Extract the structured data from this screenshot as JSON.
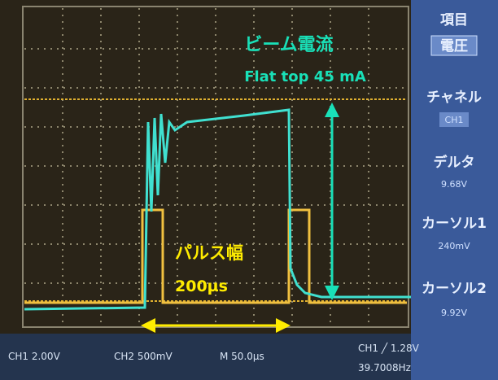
{
  "menu": {
    "title": "項目",
    "item": "電圧",
    "channel_label": "チャネル",
    "channel": "CH1",
    "delta_label": "デルタ",
    "delta": "9.68V",
    "cursor1_label": "カーソル1",
    "cursor1": "240mV",
    "cursor2_label": "カーソル2",
    "cursor2": "9.92V"
  },
  "status": {
    "ch1": "CH1 2.00V",
    "ch2": "CH2 500mV",
    "time": "M 50.0µs",
    "trigger": "CH1 ╱ 1.28V",
    "freq": "39.7008Hz"
  },
  "annotations": {
    "beam_title": "ビーム電流",
    "beam_value": "Flat top 45 mA",
    "pulse_title": "パルス幅",
    "pulse_value": "200µs"
  }
}
